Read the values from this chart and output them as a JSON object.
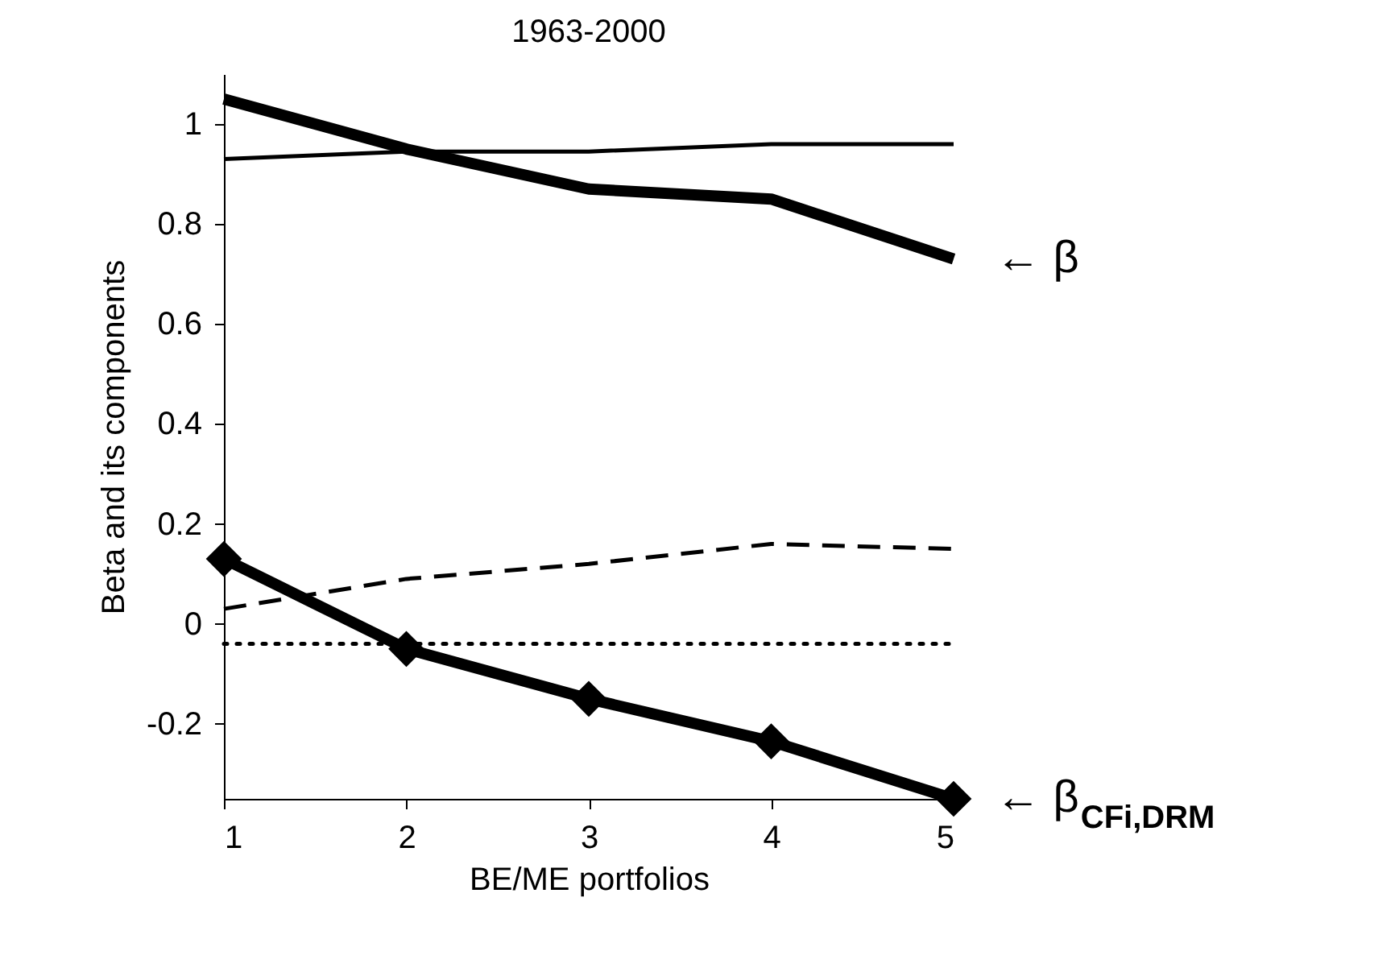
{
  "chart_data": {
    "type": "line",
    "title": "1963-2000",
    "xlabel": "BE/ME portfolios",
    "ylabel": "Beta and its components",
    "x": [
      1,
      2,
      3,
      4,
      5
    ],
    "series": [
      {
        "color": "#000000",
        "values": [
          1.05,
          0.95,
          0.87,
          0.85,
          0.73
        ],
        "line_style": "solid"
      },
      {
        "color": "#000000",
        "values": [
          0.93,
          0.945,
          0.945,
          0.96,
          0.96
        ],
        "line_style": "solid"
      },
      {
        "color": "#000000",
        "values": [
          0.03,
          0.09,
          0.12,
          0.16,
          0.15
        ],
        "line_style": "dashed"
      },
      {
        "color": "#000000",
        "values": [
          -0.04,
          -0.04,
          -0.04,
          -0.04,
          -0.04
        ],
        "line_style": "dotted"
      },
      {
        "color": "#000000",
        "values": [
          0.13,
          -0.05,
          -0.15,
          -0.235,
          -0.35
        ],
        "line_style": "solid",
        "marker": "diamond"
      }
    ],
    "xlim": [
      1,
      5
    ],
    "xticks": [
      1,
      2,
      3,
      4,
      5
    ],
    "ylim": [
      -0.35,
      1.1
    ],
    "yticks": [
      -0.2,
      0,
      0.2,
      0.4,
      0.6,
      0.8,
      1
    ],
    "grid": false,
    "annotations": [
      {
        "text": "← β",
        "x": 5,
        "y": 0.73
      },
      {
        "text": "← β$_{CFi,DRM}$",
        "x": 5,
        "y": -0.35
      }
    ]
  }
}
